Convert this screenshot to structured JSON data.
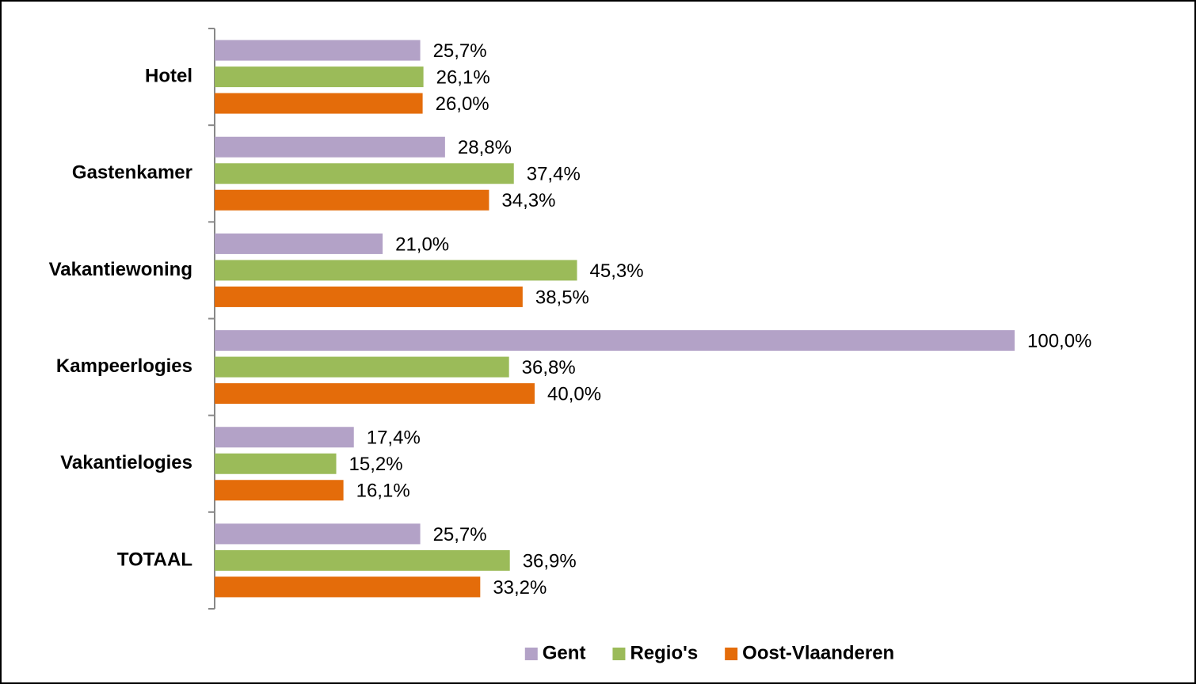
{
  "chart_data": {
    "type": "hbar",
    "categories": [
      "Hotel",
      "Gastenkamer",
      "Vakantiewoning",
      "Kampeerlogies",
      "Vakantielogies",
      "TOTAAL"
    ],
    "series": [
      {
        "name": "Gent",
        "color": "#b3a2c7",
        "values": [
          25.7,
          28.8,
          21.0,
          100.0,
          17.4,
          25.7
        ],
        "value_labels": [
          "25,7%",
          "28,8%",
          "21,0%",
          "100,0%",
          "17,4%",
          "25,7%"
        ]
      },
      {
        "name": "Regio's",
        "color": "#9bbb59",
        "values": [
          26.1,
          37.4,
          45.3,
          36.8,
          15.2,
          36.9
        ],
        "value_labels": [
          "26,1%",
          "37,4%",
          "45,3%",
          "36,8%",
          "15,2%",
          "36,9%"
        ]
      },
      {
        "name": "Oost-Vlaanderen",
        "color": "#e46c0a",
        "values": [
          26.0,
          34.3,
          38.5,
          40.0,
          16.1,
          33.2
        ],
        "value_labels": [
          "26,0%",
          "34,3%",
          "38,5%",
          "40,0%",
          "16,1%",
          "33,2%"
        ]
      }
    ],
    "xlim": [
      0,
      100
    ],
    "legend": "bottom"
  }
}
